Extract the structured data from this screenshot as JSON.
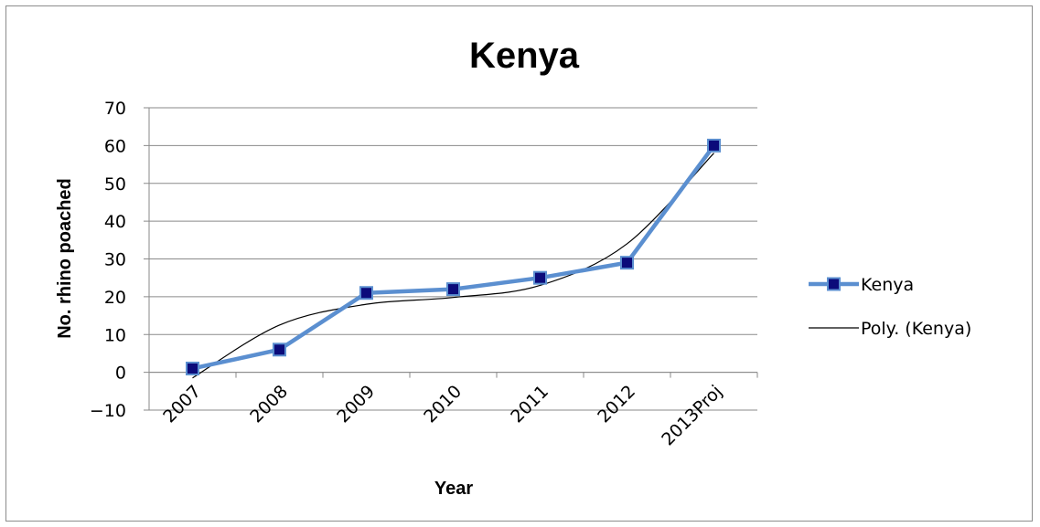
{
  "chart_data": {
    "type": "line",
    "title": "Kenya",
    "xlabel": "Year",
    "ylabel": "No. rhino poached",
    "categories": [
      "2007",
      "2008",
      "2009",
      "2010",
      "2011",
      "2012",
      "2013Proj"
    ],
    "ylim": [
      -10,
      70
    ],
    "yticks": [
      -10,
      0,
      10,
      20,
      30,
      40,
      50,
      60,
      70
    ],
    "grid": true,
    "legend_position": "right",
    "series": [
      {
        "name": "Kenya",
        "values": [
          1,
          6,
          21,
          22,
          25,
          29,
          60
        ],
        "line_color": "#5b8fd0",
        "marker_color": "#0b0b7a",
        "marker": "square"
      },
      {
        "name": "Poly. (Kenya)",
        "values": [
          -1.5,
          12.5,
          18,
          19.8,
          23,
          34,
          58
        ],
        "line_color": "#000000",
        "smooth": true
      }
    ]
  }
}
